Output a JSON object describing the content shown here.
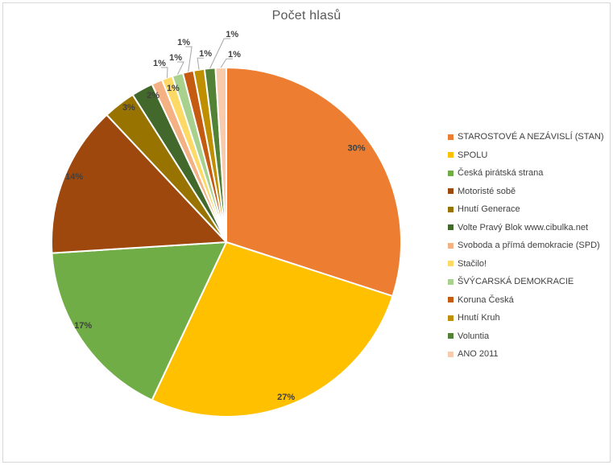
{
  "window": {
    "background_color": "#FFFFFF",
    "frame_border_color": "#D7D7D7"
  },
  "chart_data": {
    "type": "pie",
    "title": "Počet hlasů",
    "title_color": "#595959",
    "label_color": "#404040",
    "leader_line_color": "#A6A6A6",
    "slice_border_color": "#FFFFFF",
    "unit": "%",
    "legend_position": "right",
    "start_angle_deg": 0,
    "direction": "clockwise",
    "categories": [
      "STAROSTOVÉ A NEZÁVISLÍ (STAN)",
      "SPOLU",
      "Česká pirátská strana",
      "Motoristé sobě",
      "Hnutí Generace",
      "Volte Pravý Blok www.cibulka.net",
      "Svoboda a přímá demokracie (SPD)",
      "Stačilo!",
      "ŠVÝCARSKÁ DEMOKRACIE",
      "Koruna Česká",
      "Hnutí Kruh",
      "Voluntia",
      "ANO 2011"
    ],
    "values": [
      30,
      27,
      17,
      14,
      3,
      2,
      1,
      1,
      1,
      1,
      1,
      1,
      1
    ],
    "labels": [
      "30%",
      "27%",
      "17%",
      "14%",
      "3%",
      "2%",
      "1%",
      "1%",
      "1%",
      "1%",
      "1%",
      "1%",
      "1%"
    ],
    "colors": [
      "#ED7D31",
      "#FFC000",
      "#70AD47",
      "#9E480E",
      "#997300",
      "#43682B",
      "#F4B183",
      "#FFD966",
      "#A9D18E",
      "#C55A11",
      "#BF8F00",
      "#538135",
      "#F8CBAD"
    ]
  }
}
